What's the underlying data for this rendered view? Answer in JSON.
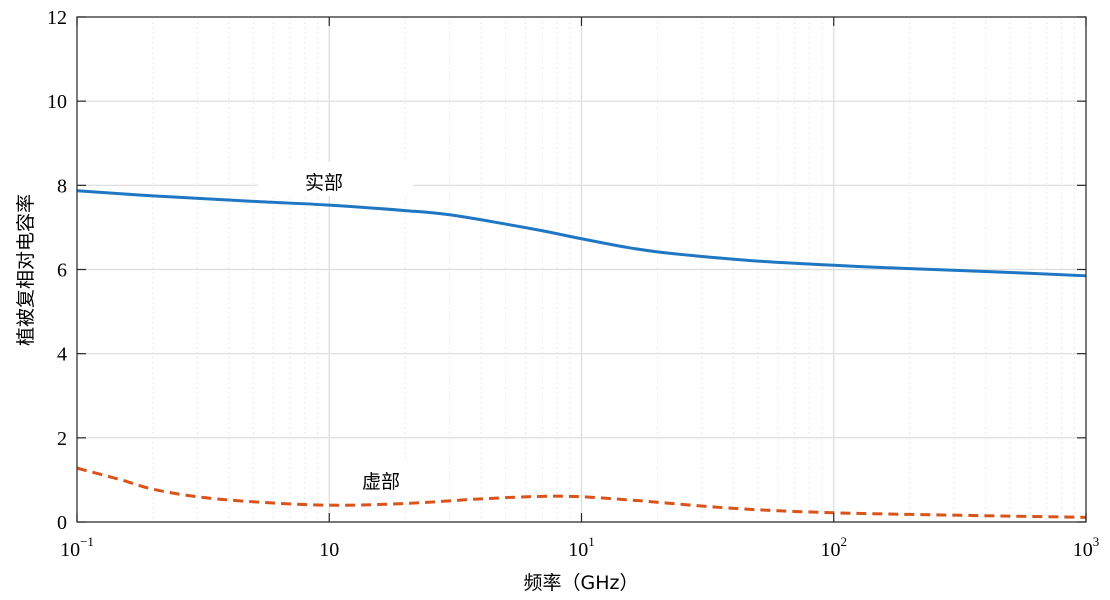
{
  "chart_data": {
    "type": "line",
    "title": "",
    "xlabel": "频率（GHz）",
    "ylabel": "植被复相对电容率",
    "x_scale": "log",
    "xlim": [
      0.1,
      1000
    ],
    "ylim": [
      0,
      12
    ],
    "grid": true,
    "x_ticks": [
      {
        "value": 0.1,
        "base": "10",
        "exp": "−1"
      },
      {
        "value": 1,
        "base": "10",
        "exp": ""
      },
      {
        "value": 10,
        "base": "10",
        "exp": "1"
      },
      {
        "value": 100,
        "base": "10",
        "exp": "2"
      },
      {
        "value": 1000,
        "base": "10",
        "exp": "3"
      }
    ],
    "y_ticks": [
      {
        "value": 0,
        "label": "0"
      },
      {
        "value": 2,
        "label": "2"
      },
      {
        "value": 4,
        "label": "4"
      },
      {
        "value": 6,
        "label": "6"
      },
      {
        "value": 8,
        "label": "8"
      },
      {
        "value": 10,
        "label": "10"
      },
      {
        "value": 12,
        "label": "12"
      }
    ],
    "series": [
      {
        "name": "实部",
        "color": "#1f77c4",
        "style": "solid",
        "x": [
          0.1,
          0.2,
          0.5,
          1,
          2,
          3,
          5,
          7,
          10,
          15,
          20,
          30,
          50,
          100,
          200,
          500,
          1000
        ],
        "y": [
          7.87,
          7.75,
          7.62,
          7.53,
          7.4,
          7.3,
          7.08,
          6.92,
          6.73,
          6.53,
          6.42,
          6.31,
          6.2,
          6.1,
          6.02,
          5.93,
          5.85
        ]
      },
      {
        "name": "虚部",
        "color": "#d9541a",
        "style": "dashed",
        "x": [
          0.1,
          0.15,
          0.2,
          0.3,
          0.5,
          1,
          2,
          4,
          7,
          10,
          15,
          20,
          30,
          50,
          100,
          200,
          500,
          1000
        ],
        "y": [
          1.28,
          1.0,
          0.78,
          0.6,
          0.48,
          0.4,
          0.44,
          0.55,
          0.61,
          0.6,
          0.53,
          0.47,
          0.38,
          0.29,
          0.22,
          0.18,
          0.14,
          0.11
        ]
      }
    ]
  }
}
